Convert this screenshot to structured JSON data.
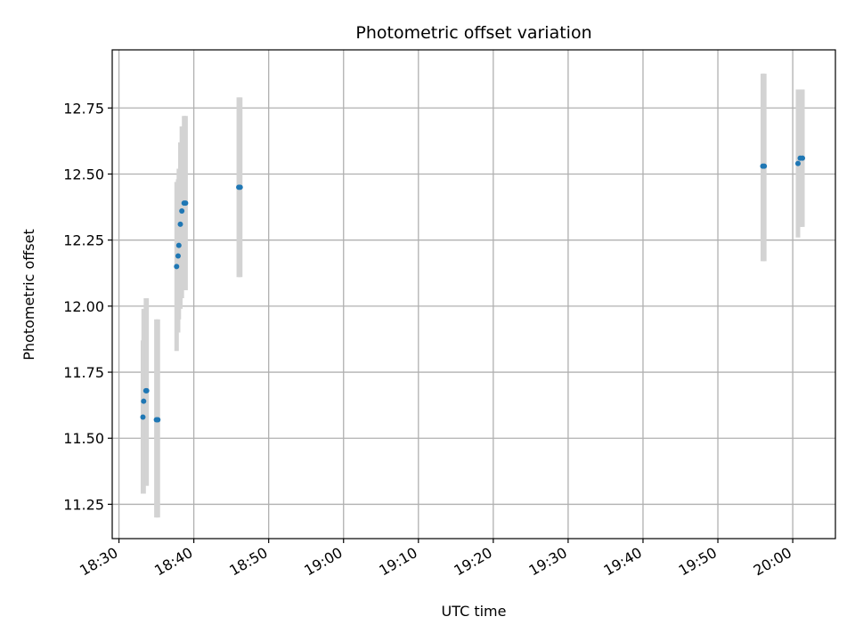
{
  "chart_data": {
    "type": "scatter",
    "title": "Photometric offset variation",
    "xlabel": "UTC time",
    "ylabel": "Photometric offset",
    "x_tick_labels": [
      "18:30",
      "18:40",
      "18:50",
      "19:00",
      "19:10",
      "19:20",
      "19:30",
      "19:40",
      "19:50",
      "20:00"
    ],
    "y_tick_labels": [
      "11.25",
      "11.50",
      "11.75",
      "12.00",
      "12.25",
      "12.50",
      "12.75"
    ],
    "xlim": [
      "18:29.1",
      "20:05.7"
    ],
    "ylim": [
      11.12,
      12.97
    ],
    "grid": true,
    "error_bar_color": "#d3d3d3",
    "marker_color": "#1f77b4",
    "points": [
      {
        "x": "18:33.2",
        "y": 11.58,
        "yerr_low": 11.29,
        "yerr_high": 11.87
      },
      {
        "x": "18:33.3",
        "y": 11.64,
        "yerr_low": 11.29,
        "yerr_high": 11.99
      },
      {
        "x": "18:33.6",
        "y": 11.68,
        "yerr_low": 11.32,
        "yerr_high": 12.03
      },
      {
        "x": "18:33.7",
        "y": 11.68,
        "yerr_low": 11.32,
        "yerr_high": 12.03
      },
      {
        "x": "18:35.0",
        "y": 11.57,
        "yerr_low": 11.2,
        "yerr_high": 11.95
      },
      {
        "x": "18:35.2",
        "y": 11.57,
        "yerr_low": 11.2,
        "yerr_high": 11.95
      },
      {
        "x": "18:37.7",
        "y": 12.15,
        "yerr_low": 11.83,
        "yerr_high": 12.47
      },
      {
        "x": "18:37.9",
        "y": 12.19,
        "yerr_low": 11.9,
        "yerr_high": 12.48
      },
      {
        "x": "18:38.0",
        "y": 12.23,
        "yerr_low": 11.95,
        "yerr_high": 12.52
      },
      {
        "x": "18:38.2",
        "y": 12.31,
        "yerr_low": 11.99,
        "yerr_high": 12.62
      },
      {
        "x": "18:38.4",
        "y": 12.36,
        "yerr_low": 12.03,
        "yerr_high": 12.68
      },
      {
        "x": "18:38.7",
        "y": 12.39,
        "yerr_low": 12.06,
        "yerr_high": 12.72
      },
      {
        "x": "18:38.9",
        "y": 12.39,
        "yerr_low": 12.06,
        "yerr_high": 12.72
      },
      {
        "x": "18:46.0",
        "y": 12.45,
        "yerr_low": 12.11,
        "yerr_high": 12.79
      },
      {
        "x": "18:46.2",
        "y": 12.45,
        "yerr_low": 12.11,
        "yerr_high": 12.79
      },
      {
        "x": "19:56.0",
        "y": 12.53,
        "yerr_low": 12.17,
        "yerr_high": 12.88
      },
      {
        "x": "19:56.2",
        "y": 12.53,
        "yerr_low": 12.17,
        "yerr_high": 12.88
      },
      {
        "x": "20:00.7",
        "y": 12.54,
        "yerr_low": 12.26,
        "yerr_high": 12.82
      },
      {
        "x": "20:01.0",
        "y": 12.56,
        "yerr_low": 12.3,
        "yerr_high": 12.82
      },
      {
        "x": "20:01.3",
        "y": 12.56,
        "yerr_low": 12.3,
        "yerr_high": 12.82
      }
    ]
  }
}
